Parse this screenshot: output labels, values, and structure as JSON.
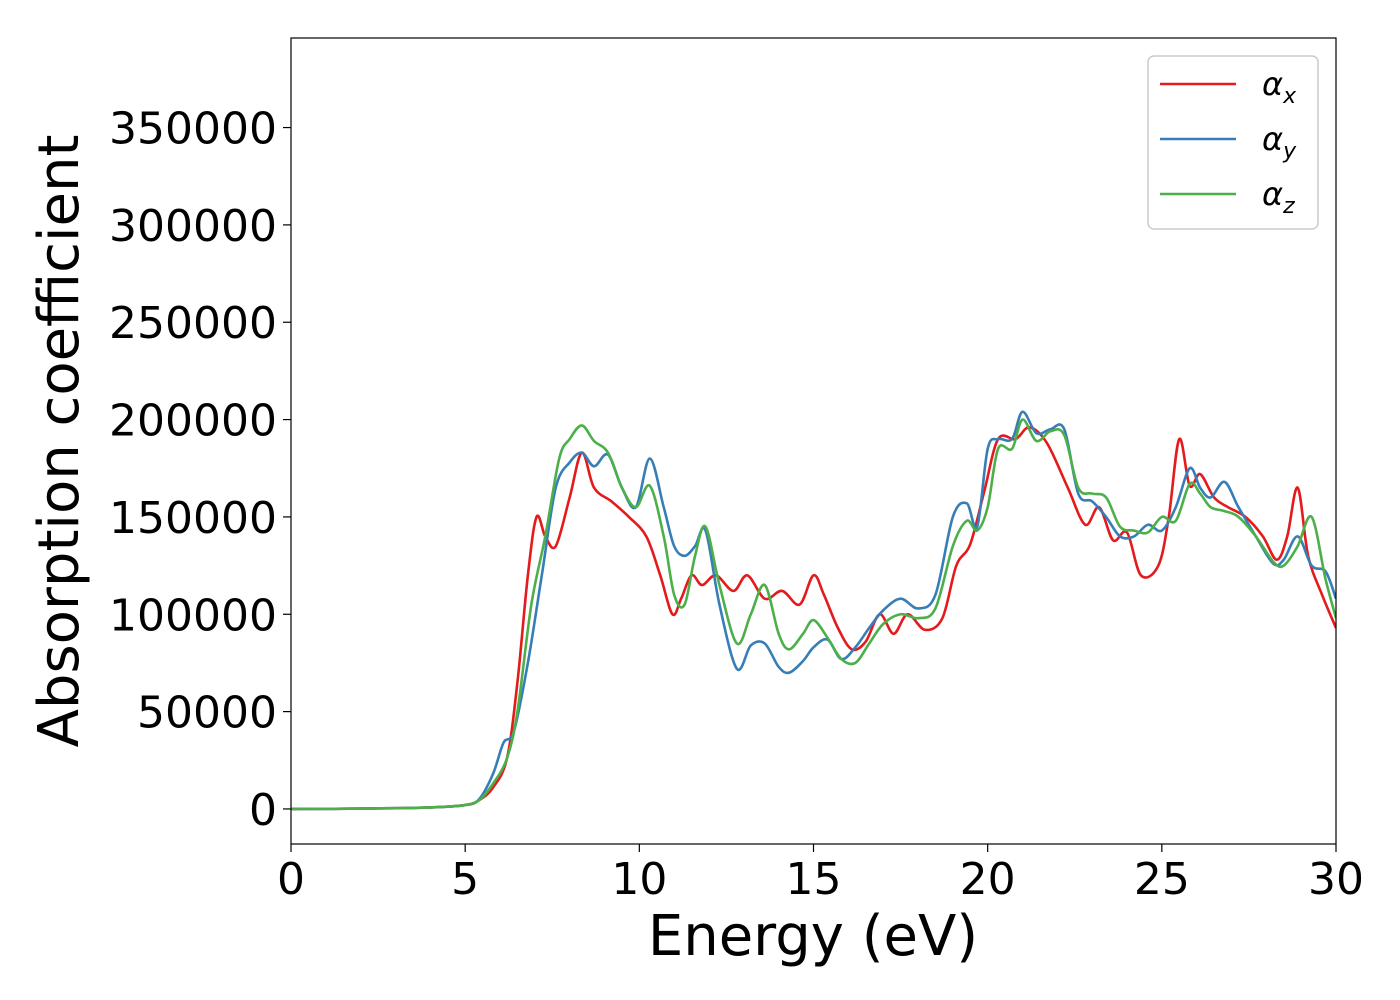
{
  "chart_data": {
    "type": "line",
    "xlabel": "Energy (eV)",
    "ylabel": "Absorption coefficient",
    "xlim": [
      0,
      30
    ],
    "ylim": [
      -18000,
      396000
    ],
    "xticks": [
      0,
      5,
      10,
      15,
      20,
      25,
      30
    ],
    "xtick_labels": [
      "0",
      "5",
      "10",
      "15",
      "20",
      "25",
      "30"
    ],
    "yticks": [
      0,
      50000,
      100000,
      150000,
      200000,
      250000,
      300000,
      350000
    ],
    "ytick_labels": [
      "0",
      "50000",
      "100000",
      "150000",
      "200000",
      "250000",
      "300000",
      "350000"
    ],
    "grid": false,
    "legend_position": "top-right",
    "series": [
      {
        "name": "αx",
        "symbol": "α",
        "subscript": "x",
        "color": "#e41a1c",
        "x": [
          0,
          2,
          4,
          5,
          5.4,
          5.8,
          6.2,
          6.5,
          6.8,
          7.05,
          7.3,
          7.6,
          8.0,
          8.35,
          8.7,
          9.2,
          9.7,
          10.2,
          10.6,
          10.95,
          11.2,
          11.5,
          11.8,
          12.2,
          12.7,
          13.1,
          13.6,
          14.1,
          14.6,
          15.0,
          15.3,
          15.7,
          16.1,
          16.5,
          16.9,
          17.3,
          17.7,
          18.2,
          18.7,
          19.1,
          19.5,
          19.9,
          20.3,
          20.8,
          21.2,
          21.7,
          22.3,
          22.8,
          23.2,
          23.6,
          24.0,
          24.4,
          24.9,
          25.2,
          25.5,
          25.8,
          26.1,
          26.5,
          26.9,
          27.4,
          27.9,
          28.3,
          28.6,
          28.9,
          29.2,
          29.6,
          30.0
        ],
        "values": [
          0,
          200,
          800,
          2000,
          4500,
          11000,
          26000,
          65000,
          120000,
          150000,
          140000,
          135000,
          160000,
          183000,
          165000,
          158000,
          150000,
          140000,
          120000,
          100000,
          108000,
          120000,
          115000,
          120000,
          112000,
          120000,
          108000,
          112000,
          105000,
          120000,
          110000,
          93000,
          82000,
          86000,
          100000,
          90000,
          100000,
          92000,
          98000,
          125000,
          136000,
          163000,
          190000,
          190000,
          196000,
          188000,
          165000,
          146000,
          155000,
          138000,
          142000,
          120000,
          125000,
          150000,
          190000,
          166000,
          172000,
          160000,
          155000,
          150000,
          140000,
          128000,
          140000,
          165000,
          130000,
          110000,
          93000
        ]
      },
      {
        "name": "αy",
        "symbol": "α",
        "subscript": "y",
        "color": "#377eb8",
        "x": [
          0,
          2,
          4,
          5,
          5.4,
          5.8,
          6.1,
          6.4,
          6.8,
          7.2,
          7.6,
          8.0,
          8.35,
          8.7,
          9.1,
          9.5,
          9.9,
          10.3,
          10.7,
          11.0,
          11.3,
          11.6,
          11.9,
          12.3,
          12.8,
          13.2,
          13.6,
          14.0,
          14.3,
          14.7,
          15.0,
          15.4,
          15.8,
          16.2,
          16.6,
          17.0,
          17.5,
          18.0,
          18.5,
          19.0,
          19.4,
          19.7,
          20.0,
          20.3,
          20.7,
          21.0,
          21.4,
          21.8,
          22.2,
          22.6,
          23.0,
          23.4,
          23.8,
          24.2,
          24.6,
          25.0,
          25.4,
          25.8,
          26.1,
          26.4,
          26.8,
          27.2,
          27.7,
          28.2,
          28.5,
          28.9,
          29.3,
          29.7,
          30.0
        ],
        "values": [
          0,
          200,
          800,
          2000,
          5000,
          18000,
          34000,
          40000,
          75000,
          120000,
          165000,
          178000,
          183000,
          176000,
          182000,
          165000,
          155000,
          180000,
          155000,
          135000,
          130000,
          135000,
          143000,
          105000,
          72000,
          84000,
          85000,
          73000,
          70000,
          76000,
          83000,
          87000,
          77000,
          83000,
          93000,
          102000,
          108000,
          103000,
          110000,
          150000,
          157000,
          145000,
          185000,
          190000,
          190000,
          204000,
          193000,
          195000,
          195000,
          162000,
          158000,
          150000,
          140000,
          140000,
          146000,
          143000,
          155000,
          175000,
          165000,
          160000,
          168000,
          155000,
          140000,
          126000,
          128000,
          140000,
          125000,
          122000,
          108000
        ]
      },
      {
        "name": "αz",
        "symbol": "α",
        "subscript": "z",
        "color": "#4daf4a",
        "x": [
          0,
          2,
          4,
          5,
          5.4,
          5.8,
          6.2,
          6.5,
          6.9,
          7.3,
          7.7,
          8.0,
          8.35,
          8.7,
          9.1,
          9.5,
          9.9,
          10.3,
          10.7,
          11.0,
          11.3,
          11.6,
          11.9,
          12.3,
          12.8,
          13.2,
          13.6,
          14.0,
          14.3,
          14.7,
          15.0,
          15.4,
          15.8,
          16.2,
          16.6,
          17.0,
          17.5,
          18.0,
          18.5,
          19.0,
          19.4,
          19.7,
          20.0,
          20.3,
          20.7,
          21.0,
          21.4,
          21.8,
          22.2,
          22.6,
          23.0,
          23.4,
          23.8,
          24.2,
          24.6,
          25.0,
          25.4,
          25.8,
          26.1,
          26.4,
          26.8,
          27.2,
          27.7,
          28.2,
          28.5,
          28.9,
          29.3,
          29.7,
          30.0
        ],
        "values": [
          0,
          200,
          800,
          2000,
          4500,
          13000,
          26000,
          50000,
          105000,
          140000,
          180000,
          190000,
          197000,
          189000,
          183000,
          165000,
          155000,
          166000,
          140000,
          110000,
          105000,
          130000,
          145000,
          115000,
          85000,
          100000,
          115000,
          90000,
          82000,
          90000,
          97000,
          88000,
          77000,
          75000,
          85000,
          95000,
          100000,
          98000,
          103000,
          135000,
          148000,
          143000,
          155000,
          185000,
          185000,
          200000,
          189000,
          194000,
          192000,
          165000,
          162000,
          160000,
          145000,
          143000,
          142000,
          150000,
          148000,
          167000,
          162000,
          155000,
          153000,
          150000,
          140000,
          127000,
          125000,
          135000,
          150000,
          118000,
          98000
        ]
      }
    ]
  }
}
